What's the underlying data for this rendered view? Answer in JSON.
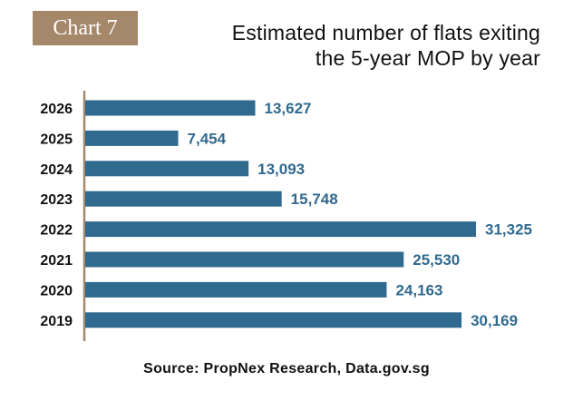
{
  "badge": {
    "label": "Chart 7"
  },
  "title_lines": [
    "Estimated number of flats exiting",
    "the 5-year MOP by year"
  ],
  "source": "Source: PropNex Research, Data.gov.sg",
  "colors": {
    "bar": "#316a8f",
    "label": "#316a8f",
    "axis": "#a5876a",
    "badge": "#a5876a"
  },
  "chart_data": {
    "type": "bar",
    "orientation": "horizontal",
    "categories": [
      "2026",
      "2025",
      "2024",
      "2023",
      "2022",
      "2021",
      "2020",
      "2019"
    ],
    "values": [
      13627,
      7454,
      13093,
      15748,
      31325,
      25530,
      24163,
      30169
    ],
    "data_labels": [
      "13,627",
      "7,454",
      "13,093",
      "15,748",
      "31,325",
      "25,530",
      "24,163",
      "30,169"
    ],
    "title": "Estimated number of flats exiting the 5-year MOP by year",
    "xlabel": "",
    "ylabel": "",
    "xlim": [
      0,
      31325
    ],
    "grid": false,
    "legend": "none"
  }
}
